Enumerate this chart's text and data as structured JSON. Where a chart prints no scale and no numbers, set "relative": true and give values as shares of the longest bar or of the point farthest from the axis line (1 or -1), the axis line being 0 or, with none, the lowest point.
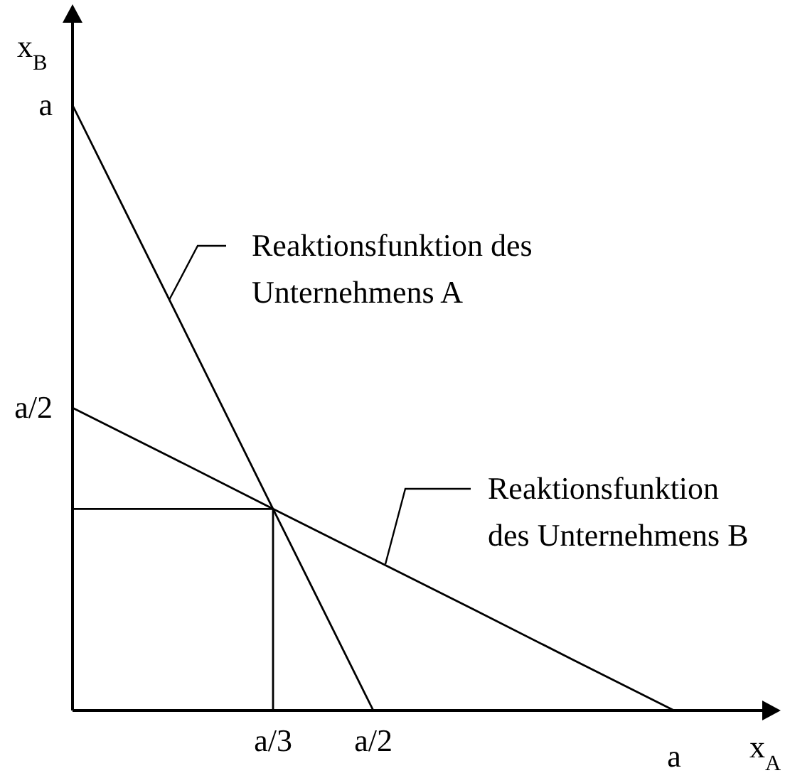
{
  "chart_data": {
    "type": "line",
    "relative": true,
    "xlabel": "x$_{A}$",
    "ylabel": "x$_{B}$",
    "categories": [
      null,
      null,
      "a/3",
      "a/2",
      null,
      null,
      "a"
    ],
    "series": [
      {
        "color": "#000000",
        "values": [
          1,
          0.667,
          0.333,
          0,
          null,
          null,
          null
        ]
      },
      {
        "color": "#000000",
        "values": [
          0.5,
          0.417,
          0.333,
          0.25,
          0.167,
          0.083,
          0
        ]
      },
      {
        "type": "step",
        "color": "#000000",
        "values": [
          0.333,
          0.333,
          0,
          null,
          null,
          null,
          null
        ]
      }
    ],
    "annotations": [
      "Reaktionsfunktion des Unternehmens A",
      "Reaktionsfunktion des Unternehmens B",
      "a",
      "a/2"
    ]
  }
}
